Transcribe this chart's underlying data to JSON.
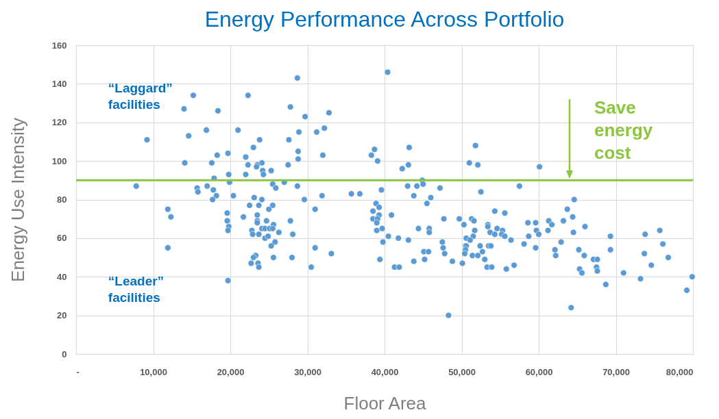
{
  "chart_data": {
    "type": "scatter",
    "title": "Energy Performance Across Portfolio",
    "xlabel": "Floor Area",
    "ylabel": "Energy Use Intensity",
    "marker": "circle",
    "grid": true,
    "color": "#5b9bd5",
    "xlim": [
      0,
      80000
    ],
    "ylim": [
      0,
      160
    ],
    "xticks": [
      {
        "value": 0,
        "label": "-"
      },
      {
        "value": 10000,
        "label": "10,000"
      },
      {
        "value": 20000,
        "label": "20,000"
      },
      {
        "value": 30000,
        "label": "30,000"
      },
      {
        "value": 40000,
        "label": "40,000"
      },
      {
        "value": 50000,
        "label": "50,000"
      },
      {
        "value": 60000,
        "label": "60,000"
      },
      {
        "value": 70000,
        "label": "70,000"
      },
      {
        "value": 80000,
        "label": "80,000"
      }
    ],
    "yticks": [
      0,
      20,
      40,
      60,
      80,
      100,
      120,
      140,
      160
    ],
    "x": [
      15200,
      14000,
      18400,
      16900,
      9200,
      14600,
      19700,
      18300,
      14100,
      17600,
      19800,
      17900,
      19900,
      7800,
      15700,
      15800,
      17000,
      17800,
      18200,
      17700,
      20400,
      11900,
      12300,
      19600,
      19600,
      19800,
      19700,
      11900,
      19700,
      28700,
      22300,
      27800,
      29700,
      32800,
      21000,
      32200,
      28900,
      31200,
      23800,
      27600,
      23000,
      28800,
      22000,
      32000,
      28800,
      24100,
      22300,
      27500,
      23500,
      23400,
      25300,
      24200,
      24300,
      22000,
      25500,
      25900,
      27000,
      28700,
      29600,
      31900,
      35700,
      36800,
      39600,
      23100,
      24100,
      23700,
      22500,
      25500,
      25000,
      31000,
      21700,
      23500,
      23500,
      23500,
      24700,
      27800,
      25600,
      24100,
      24500,
      25100,
      25500,
      22800,
      22900,
      23700,
      26300,
      28100,
      24500,
      24900,
      25800,
      25300,
      31000,
      33100,
      25600,
      28000,
      23300,
      23000,
      22700,
      23600,
      23700,
      30500,
      38700,
      38300,
      39100,
      38900,
      39300,
      38500,
      39300,
      38500,
      39100,
      39000,
      39000,
      39700,
      39800,
      39400,
      40400,
      43200,
      43100,
      42300,
      44900,
      45000,
      43000,
      44200,
      47200,
      43800,
      46000,
      45500,
      40900,
      47700,
      44400,
      45800,
      45800,
      40500,
      41800,
      43100,
      47500,
      47600,
      47800,
      45100,
      45700,
      45200,
      43800,
      41300,
      41900,
      48800,
      48300,
      50100,
      49700,
      50300,
      51000,
      51800,
      52100,
      52500,
      54300,
      55600,
      57500,
      51300,
      51600,
      53400,
      53400,
      51700,
      51500,
      50600,
      51100,
      53700,
      54300,
      54600,
      55300,
      55200,
      55600,
      56400,
      50500,
      50600,
      50500,
      50400,
      52400,
      52700,
      51400,
      52100,
      53500,
      53800,
      53000,
      53300,
      53900,
      55800,
      56800,
      58100,
      58600,
      58700,
      59600,
      59700,
      60000,
      59600,
      60100,
      61300,
      61700,
      61200,
      63200,
      63700,
      64400,
      64600,
      64500,
      62900,
      62100,
      62200,
      66000,
      65200,
      65900,
      65300,
      65600,
      67100,
      67600,
      67500,
      67600,
      68700,
      64200,
      69300,
      69300,
      71000,
      73200,
      73800,
      73700,
      74600,
      75700,
      76100,
      76800,
      79200,
      79900
    ],
    "values": [
      134,
      127,
      126,
      116,
      111,
      113,
      104,
      103,
      99,
      99,
      93,
      91,
      89,
      87,
      86,
      84,
      87,
      85,
      82,
      80,
      82,
      75,
      71,
      73,
      69,
      66,
      64,
      55,
      38,
      143,
      134,
      128,
      123,
      125,
      116,
      117,
      115,
      115,
      111,
      111,
      107,
      105,
      102,
      103,
      101,
      99,
      98,
      98,
      98,
      97,
      95,
      95,
      93,
      93,
      88,
      86,
      89,
      87,
      80,
      82,
      83,
      83,
      85,
      81,
      80,
      77,
      77,
      77,
      75,
      75,
      71,
      72,
      69,
      68,
      69,
      69,
      67,
      65,
      65,
      65,
      65,
      64,
      62,
      62,
      63,
      62,
      60,
      61,
      58,
      56,
      55,
      52,
      50,
      50,
      51,
      50,
      47,
      47,
      45,
      45,
      106,
      103,
      100,
      78,
      76,
      74,
      72,
      70,
      70,
      68,
      64,
      65,
      58,
      49,
      146,
      107,
      98,
      96,
      90,
      88,
      87,
      87,
      86,
      82,
      81,
      78,
      72,
      70,
      65,
      65,
      63,
      61,
      60,
      59,
      58,
      55,
      52,
      53,
      53,
      49,
      48,
      45,
      45,
      48,
      20,
      47,
      70,
      67,
      99,
      108,
      98,
      84,
      74,
      73,
      87,
      70,
      69,
      67,
      66,
      64,
      61,
      60,
      59,
      63,
      62,
      65,
      64,
      62,
      61,
      59,
      56,
      56,
      54,
      52,
      56,
      53,
      51,
      51,
      56,
      56,
      49,
      45,
      45,
      44,
      46,
      57,
      68,
      61,
      68,
      64,
      62,
      55,
      97,
      69,
      67,
      64,
      69,
      75,
      71,
      80,
      63,
      58,
      54,
      51,
      66,
      54,
      51,
      44,
      42,
      49,
      49,
      45,
      43,
      36,
      24,
      61,
      54,
      42,
      39,
      62,
      52,
      46,
      64,
      57,
      50,
      33,
      40
    ],
    "ref_lines": [
      {
        "axis": "y",
        "value": 90,
        "label": "Save energy cost",
        "color": "#8cc63f"
      }
    ],
    "annotations": [
      "“Laggard” facilities",
      "“Leader” facilities"
    ]
  }
}
